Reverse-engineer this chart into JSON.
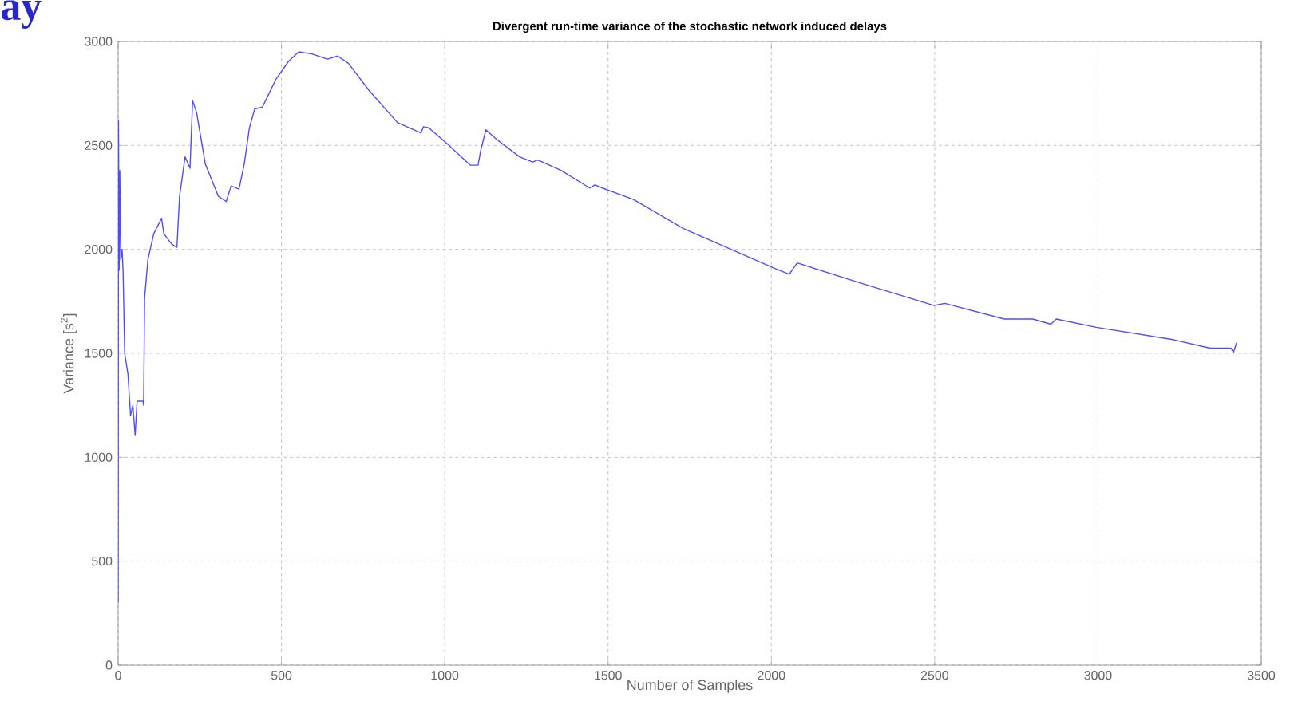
{
  "chart_data": {
    "type": "line",
    "title": "Divergent run-time variance of the stochastic network induced delays",
    "xlabel": "Number of Samples",
    "ylabel": "Variance [s$^{2}$]",
    "annotations": [
      "ay"
    ],
    "xlim": [
      0,
      3500
    ],
    "ylim": [
      0,
      3000
    ],
    "xticks": [
      0,
      500,
      1000,
      1500,
      2000,
      2500,
      3000,
      3500
    ],
    "yticks": [
      0,
      500,
      1000,
      1500,
      2000,
      2500,
      3000
    ],
    "grid": true,
    "marker": "none",
    "line_style": "solid",
    "series": [
      {
        "color": "#4d4dff",
        "x": [
          0,
          1,
          3,
          5,
          8,
          12,
          15,
          20,
          30,
          38,
          45,
          52,
          58,
          76,
          78,
          81,
          91,
          109,
          133,
          140,
          164,
          180,
          188,
          205,
          220,
          228,
          240,
          267,
          307,
          331,
          346,
          370,
          386,
          402,
          418,
          442,
          482,
          522,
          553,
          593,
          641,
          672,
          705,
          768,
          855,
          927,
          935,
          951,
          1006,
          1078,
          1102,
          1110,
          1126,
          1158,
          1229,
          1269,
          1285,
          1356,
          1444,
          1460,
          1483,
          1578,
          1731,
          2008,
          2055,
          2079,
          2279,
          2499,
          2531,
          2713,
          2800,
          2856,
          2872,
          2995,
          3233,
          3343,
          3407,
          3415,
          3424
        ],
        "values": [
          300,
          2620,
          1900,
          2380,
          1950,
          2000,
          1900,
          1500,
          1400,
          1200,
          1250,
          1105,
          1270,
          1270,
          1250,
          1765,
          1950,
          2075,
          2150,
          2075,
          2025,
          2010,
          2255,
          2445,
          2390,
          2715,
          2660,
          2410,
          2255,
          2230,
          2305,
          2290,
          2410,
          2585,
          2675,
          2685,
          2815,
          2905,
          2950,
          2940,
          2915,
          2930,
          2895,
          2765,
          2610,
          2560,
          2590,
          2585,
          2510,
          2405,
          2405,
          2475,
          2575,
          2530,
          2445,
          2420,
          2430,
          2380,
          2295,
          2310,
          2295,
          2240,
          2100,
          1910,
          1880,
          1935,
          1835,
          1730,
          1740,
          1665,
          1665,
          1640,
          1665,
          1625,
          1565,
          1525,
          1525,
          1505,
          1550
        ]
      }
    ]
  }
}
